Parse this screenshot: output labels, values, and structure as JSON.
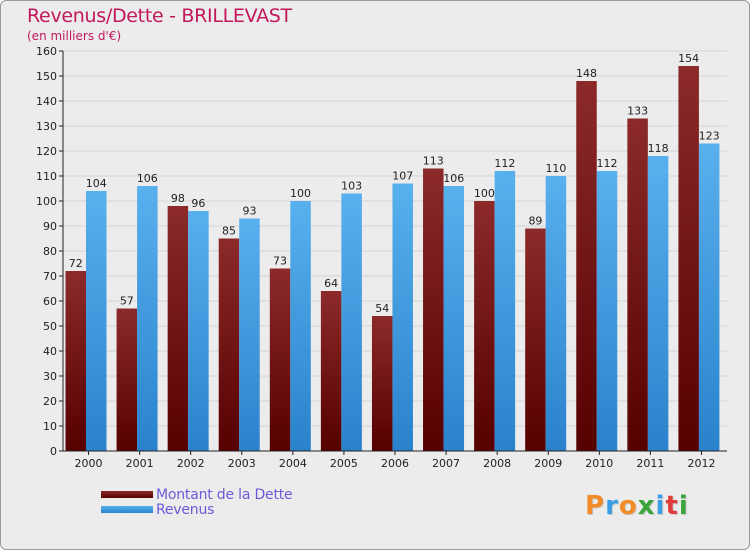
{
  "header": {
    "title": "Revenus/Dette - BRILLEVAST",
    "subtitle": "(en milliers d'€)"
  },
  "chart_data": {
    "type": "bar",
    "title": "Revenus/Dette - BRILLEVAST",
    "ylabel": "(en milliers d'€)",
    "xlabel": "",
    "ylim": [
      0,
      160
    ],
    "yticks": [
      0,
      10,
      20,
      30,
      40,
      50,
      60,
      70,
      80,
      90,
      100,
      110,
      120,
      130,
      140,
      150,
      160
    ],
    "grid": true,
    "legend_position": "bottom-left",
    "categories": [
      "2000",
      "2001",
      "2002",
      "2003",
      "2004",
      "2005",
      "2006",
      "2007",
      "2008",
      "2009",
      "2010",
      "2011",
      "2012"
    ],
    "series": [
      {
        "name": "Montant de la Dette",
        "color": "#7a1a1a",
        "values": [
          72,
          57,
          98,
          85,
          73,
          64,
          54,
          113,
          100,
          89,
          148,
          133,
          154
        ]
      },
      {
        "name": "Revenus",
        "color": "#3a9ee6",
        "values": [
          104,
          106,
          96,
          93,
          100,
          103,
          107,
          106,
          112,
          110,
          112,
          118,
          123
        ]
      }
    ]
  },
  "logo": {
    "text": "Proxiti",
    "colors": [
      "#f28c28",
      "#3a9ee6",
      "#f28c28",
      "#3aa53a",
      "#3a9ee6",
      "#e03c3c",
      "#3aa53a"
    ]
  }
}
